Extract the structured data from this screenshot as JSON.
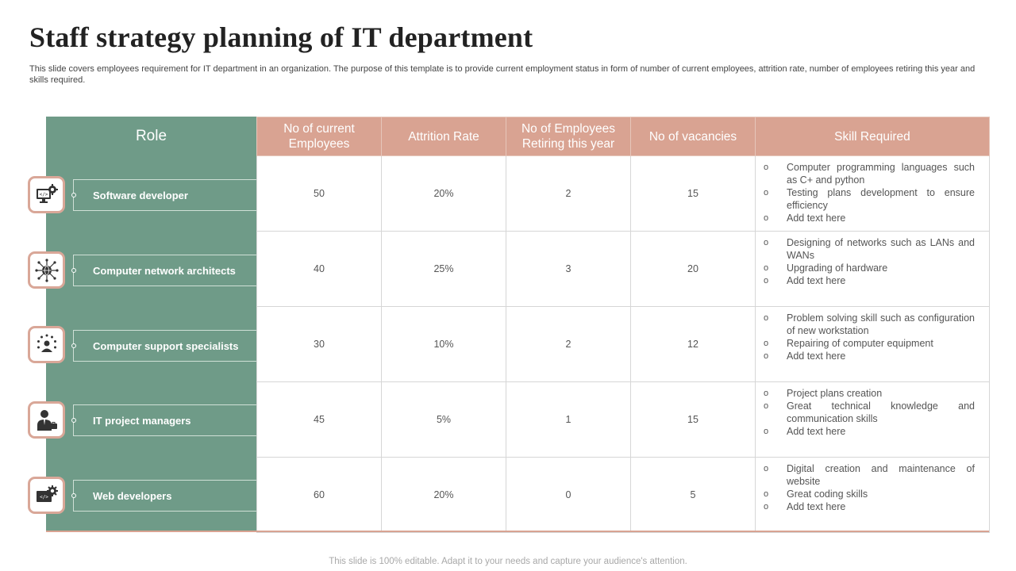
{
  "title": "Staff strategy planning of IT department",
  "subtitle": "This slide covers employees requirement for IT department in an organization. The purpose of this template is to provide current employment status in form of number of current employees, attrition rate, number of employees retiring this year and skills required.",
  "footer": "This slide is 100% editable. Adapt it to your needs and capture your audience's attention.",
  "colors": {
    "role_green": "#6f9b88",
    "header_salmon": "#d9a392",
    "icon_border": "#d9a798"
  },
  "table": {
    "role_header": "Role",
    "headers": [
      "No of current Employees",
      "Attrition Rate",
      "No of Employees Retiring this year",
      "No of vacancies",
      "Skill Required"
    ],
    "rows": [
      {
        "role": "Software developer",
        "icon": "developer-monitor-gear-icon",
        "current": "50",
        "attrition": "20%",
        "retiring": "2",
        "vacancies": "15",
        "skills": [
          "Computer programming languages such as C+ and python",
          "Testing plans development  to ensure efficiency",
          "Add text here"
        ]
      },
      {
        "role": "Computer network architects",
        "icon": "network-globe-icon",
        "current": "40",
        "attrition": "25%",
        "retiring": "3",
        "vacancies": "20",
        "skills": [
          "Designing of networks such as LANs and WANs",
          "Upgrading of hardware",
          "Add text here"
        ]
      },
      {
        "role": "Computer support specialists",
        "icon": "support-person-stars-icon",
        "current": "30",
        "attrition": "10%",
        "retiring": "2",
        "vacancies": "12",
        "skills": [
          "Problem solving skill such as configuration of new workstation",
          "Repairing of computer equipment",
          "Add text here"
        ]
      },
      {
        "role": "IT project managers",
        "icon": "manager-person-icon",
        "current": "45",
        "attrition": "5%",
        "retiring": "1",
        "vacancies": "15",
        "skills": [
          "Project plans creation",
          "Great technical knowledge and communication skills",
          "Add text here"
        ]
      },
      {
        "role": "Web developers",
        "icon": "web-code-gear-icon",
        "current": "60",
        "attrition": "20%",
        "retiring": "0",
        "vacancies": "5",
        "skills": [
          "Digital creation and maintenance of website",
          "Great coding skills",
          "Add text here"
        ]
      }
    ]
  }
}
